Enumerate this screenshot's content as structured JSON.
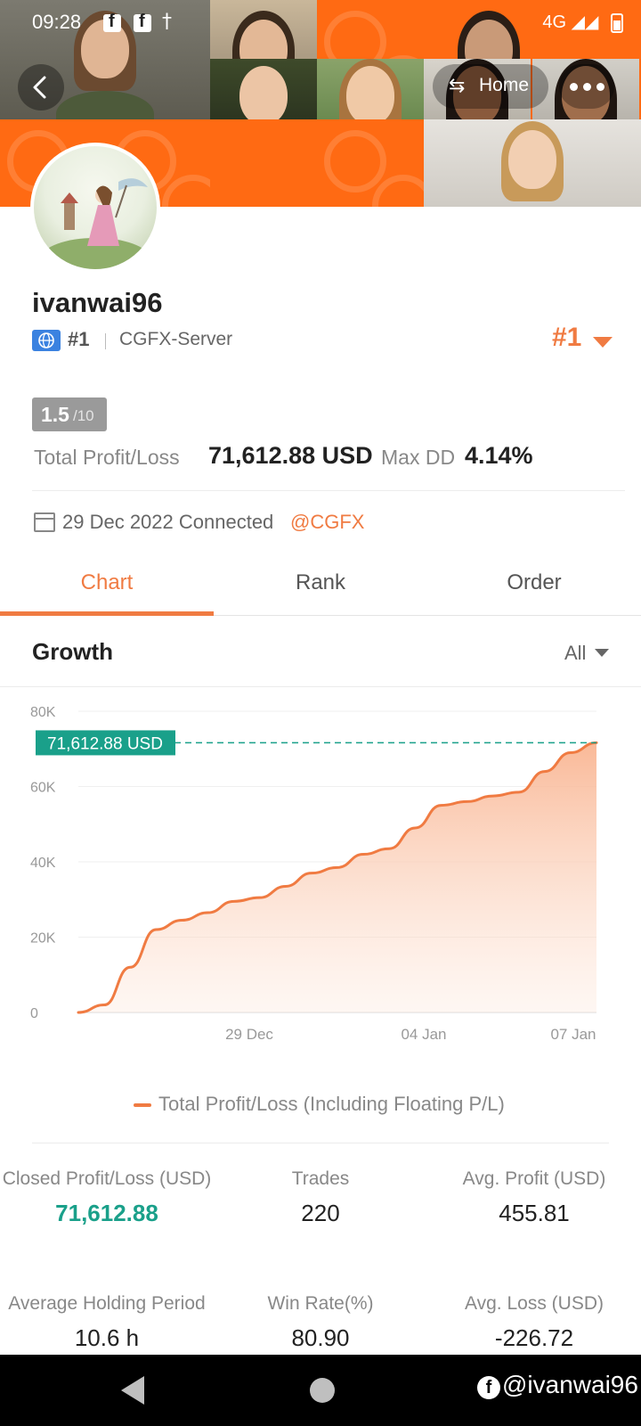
{
  "status_bar": {
    "time": "09:28",
    "fb_glyph": "f",
    "accessibility_glyph": "†",
    "network": "4G",
    "network_icons": [
      "volte-icon",
      "hotspot-icon",
      "signal-icon",
      "battery-icon"
    ]
  },
  "header": {
    "back_icon": "chevron-left-icon",
    "home_label": "Home",
    "home_icon": "swap-icon",
    "more_icon": "more-dots-icon",
    "colors": {
      "banner_orange": "#ff6a13"
    }
  },
  "profile": {
    "username": "ivanwai96",
    "region_rank": "#1",
    "server": "CGFX-Server",
    "overall_rank": "#1",
    "score_value": "1.5",
    "score_denominator": "/10",
    "total_pl_label": "Total Profit/Loss",
    "total_pl_value": "71,612.88 USD",
    "max_dd_label": "Max DD",
    "max_dd_value": "4.14%",
    "connected_text": "29 Dec 2022 Connected",
    "connected_link": "@CGFX"
  },
  "tabs": [
    {
      "label": "Chart",
      "active": true
    },
    {
      "label": "Rank",
      "active": false
    },
    {
      "label": "Order",
      "active": false
    }
  ],
  "growth": {
    "title": "Growth",
    "period": "All"
  },
  "chart_data": {
    "type": "area",
    "title": "",
    "xlabel": "",
    "ylabel": "",
    "ylim": [
      0,
      80000
    ],
    "y_ticks": [
      "0",
      "20K",
      "40K",
      "60K",
      "80K"
    ],
    "x_ticks": [
      "29 Dec",
      "04 Jan",
      "07 Jan"
    ],
    "highlight_label": "71,612.88 USD",
    "highlight_value": 71612.88,
    "series": [
      {
        "name": "Total Profit/Loss (Including Floating P/L)",
        "color": "#f07b42",
        "values": [
          0,
          2000,
          12000,
          22000,
          24500,
          26500,
          29500,
          30500,
          33500,
          37000,
          38500,
          42000,
          43500,
          49000,
          55000,
          56000,
          57500,
          58500,
          64000,
          69000,
          71612.88
        ]
      }
    ]
  },
  "legend_text": "Total Profit/Loss (Including Floating P/L)",
  "stats": [
    {
      "label": "Closed Profit/Loss (USD)",
      "value": "71,612.88",
      "accent": true
    },
    {
      "label": "Trades",
      "value": "220"
    },
    {
      "label": "Avg. Profit (USD)",
      "value": "455.81"
    },
    {
      "label": "Average Holding Period",
      "value": "10.6 h"
    },
    {
      "label": "Win Rate(%)",
      "value": "80.90"
    },
    {
      "label": "Avg. Loss (USD)",
      "value": "-226.72"
    }
  ],
  "nav": {
    "back_icon": "nav-back-icon",
    "home_icon": "nav-home-icon",
    "watermark": "@ivanwai96",
    "watermark_glyph": "f"
  }
}
